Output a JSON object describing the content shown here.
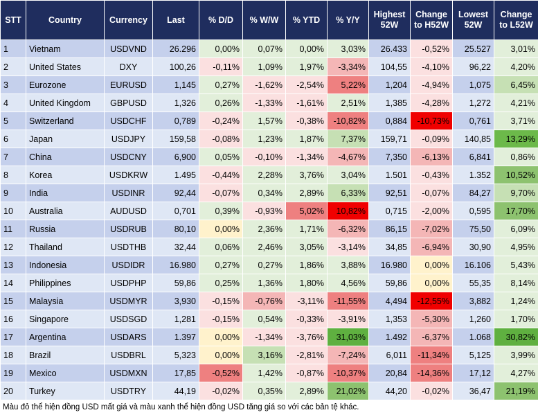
{
  "table": {
    "header": [
      "STT",
      "Country",
      "Currency",
      "Last",
      "% D/D",
      "% W/W",
      "% YTD",
      "% Y/Y",
      "Highest 52W",
      "Change to H52W",
      "Lowest 52W",
      "Change to L52W"
    ],
    "rows": [
      [
        "1",
        "Vietnam",
        "USDVND",
        "26.296",
        "0,00%",
        "0,07%",
        "0,00%",
        "3,03%",
        "26.433",
        "-0,52%",
        "25.527",
        "3,01%"
      ],
      [
        "2",
        "United States",
        "DXY",
        "100,26",
        "-0,11%",
        "1,09%",
        "1,97%",
        "-3,34%",
        "104,55",
        "-4,10%",
        "96,22",
        "4,20%"
      ],
      [
        "3",
        "Eurozone",
        "EURUSD",
        "1,145",
        "0,27%",
        "-1,62%",
        "-2,54%",
        "5,22%",
        "1,204",
        "-4,94%",
        "1,075",
        "6,45%"
      ],
      [
        "4",
        "United Kingdom",
        "GBPUSD",
        "1,326",
        "0,26%",
        "-1,33%",
        "-1,61%",
        "2,51%",
        "1,385",
        "-4,28%",
        "1,272",
        "4,21%"
      ],
      [
        "5",
        "Switzerland",
        "USDCHF",
        "0,789",
        "-0,24%",
        "1,57%",
        "-0,38%",
        "-10,82%",
        "0,884",
        "-10,73%",
        "0,761",
        "3,71%"
      ],
      [
        "6",
        "Japan",
        "USDJPY",
        "159,58",
        "-0,08%",
        "1,23%",
        "1,87%",
        "7,37%",
        "159,71",
        "-0,09%",
        "140,85",
        "13,29%"
      ],
      [
        "7",
        "China",
        "USDCNY",
        "6,900",
        "0,05%",
        "-0,10%",
        "-1,34%",
        "-4,67%",
        "7,350",
        "-6,13%",
        "6,841",
        "0,86%"
      ],
      [
        "8",
        "Korea",
        "USDKRW",
        "1.495",
        "-0,44%",
        "2,28%",
        "3,76%",
        "3,04%",
        "1.501",
        "-0,43%",
        "1.352",
        "10,52%"
      ],
      [
        "9",
        "India",
        "USDINR",
        "92,44",
        "-0,07%",
        "0,34%",
        "2,89%",
        "6,33%",
        "92,51",
        "-0,07%",
        "84,27",
        "9,70%"
      ],
      [
        "10",
        "Australia",
        "AUDUSD",
        "0,701",
        "0,39%",
        "-0,93%",
        "5,02%",
        "10,82%",
        "0,715",
        "-2,00%",
        "0,595",
        "17,70%"
      ],
      [
        "11",
        "Russia",
        "USDRUB",
        "80,10",
        "0,00%",
        "2,36%",
        "1,71%",
        "-6,32%",
        "86,15",
        "-7,02%",
        "75,50",
        "6,09%"
      ],
      [
        "12",
        "Thailand",
        "USDTHB",
        "32,44",
        "0,06%",
        "2,46%",
        "3,05%",
        "-3,14%",
        "34,85",
        "-6,94%",
        "30,90",
        "4,95%"
      ],
      [
        "13",
        "Indonesia",
        "USDIDR",
        "16.980",
        "0,27%",
        "0,27%",
        "1,86%",
        "3,88%",
        "16.980",
        "0,00%",
        "16.106",
        "5,43%"
      ],
      [
        "14",
        "Philippines",
        "USDPHP",
        "59,86",
        "0,25%",
        "1,36%",
        "1,80%",
        "4,56%",
        "59,86",
        "0,00%",
        "55,35",
        "8,14%"
      ],
      [
        "15",
        "Malaysia",
        "USDMYR",
        "3,930",
        "-0,15%",
        "-0,76%",
        "-3,11%",
        "-11,55%",
        "4,494",
        "-12,55%",
        "3,882",
        "1,24%"
      ],
      [
        "16",
        "Singapore",
        "USDSGD",
        "1,281",
        "-0,15%",
        "0,54%",
        "-0,33%",
        "-3,91%",
        "1,353",
        "-5,30%",
        "1,260",
        "1,70%"
      ],
      [
        "17",
        "Argentina",
        "USDARS",
        "1.397",
        "0,00%",
        "-1,34%",
        "-3,76%",
        "31,03%",
        "1.492",
        "-6,37%",
        "1.068",
        "30,82%"
      ],
      [
        "18",
        "Brazil",
        "USDBRL",
        "5,323",
        "0,00%",
        "3,16%",
        "-2,81%",
        "-7,24%",
        "6,011",
        "-11,34%",
        "5,125",
        "3,99%"
      ],
      [
        "19",
        "Mexico",
        "USDMXN",
        "17,85",
        "-0,52%",
        "1,42%",
        "-0,87%",
        "-10,37%",
        "20,84",
        "-14,36%",
        "17,12",
        "4,27%"
      ],
      [
        "20",
        "Turkey",
        "USDTRY",
        "44,19",
        "-0,02%",
        "0,35%",
        "2,89%",
        "21,02%",
        "44,20",
        "-0,02%",
        "36,47",
        "21,19%"
      ]
    ],
    "colored_columns": [
      4,
      5,
      6,
      7,
      9,
      11
    ],
    "cell_colors": [
      [
        "#e2efda",
        "#e2efda",
        "#e2efda",
        "#e2efda",
        "#fbe0e0",
        "#e2efda"
      ],
      [
        "#fbe0e0",
        "#e2efda",
        "#e2efda",
        "#f4b6b6",
        "#fbe0e0",
        "#e2efda"
      ],
      [
        "#e2efda",
        "#fbe0e0",
        "#fbe0e0",
        "#ee8080",
        "#fbe0e0",
        "#c6e0b4"
      ],
      [
        "#e2efda",
        "#fbe0e0",
        "#fbe0e0",
        "#e2efda",
        "#fbe0e0",
        "#e2efda"
      ],
      [
        "#fbe0e0",
        "#e2efda",
        "#fbe0e0",
        "#ee8080",
        "#f00000",
        "#e2efda"
      ],
      [
        "#fbe0e0",
        "#e2efda",
        "#e2efda",
        "#c6e0b4",
        "#fbe0e0",
        "#6cb94a"
      ],
      [
        "#e2efda",
        "#fbe0e0",
        "#fbe0e0",
        "#f4b6b6",
        "#f4b6b6",
        "#e2efda"
      ],
      [
        "#fbe0e0",
        "#e2efda",
        "#e2efda",
        "#e2efda",
        "#fbe0e0",
        "#8dc26f"
      ],
      [
        "#fbe0e0",
        "#e2efda",
        "#e2efda",
        "#c6e0b4",
        "#fbe0e0",
        "#c6e0b4"
      ],
      [
        "#e2efda",
        "#fbe0e0",
        "#ee8080",
        "#f00000",
        "#fbe0e0",
        "#8dc26f"
      ],
      [
        "#fff2cc",
        "#e2efda",
        "#e2efda",
        "#f4b6b6",
        "#f4b6b6",
        "#e2efda"
      ],
      [
        "#e2efda",
        "#e2efda",
        "#e2efda",
        "#fbe0e0",
        "#f4b6b6",
        "#e2efda"
      ],
      [
        "#e2efda",
        "#e2efda",
        "#e2efda",
        "#e2efda",
        "#fff2cc",
        "#e2efda"
      ],
      [
        "#e2efda",
        "#e2efda",
        "#e2efda",
        "#e2efda",
        "#fff2cc",
        "#e2efda"
      ],
      [
        "#fbe0e0",
        "#f4b6b6",
        "#fbe0e0",
        "#ee8080",
        "#f00000",
        "#e2efda"
      ],
      [
        "#fbe0e0",
        "#e2efda",
        "#fbe0e0",
        "#fbe0e0",
        "#f4b6b6",
        "#e2efda"
      ],
      [
        "#fff2cc",
        "#fbe0e0",
        "#fbe0e0",
        "#5fb040",
        "#f4b6b6",
        "#5fb040"
      ],
      [
        "#fff2cc",
        "#c6e0b4",
        "#fbe0e0",
        "#f4b6b6",
        "#ee8080",
        "#e2efda"
      ],
      [
        "#ee8080",
        "#e2efda",
        "#fbe0e0",
        "#ee8080",
        "#ee8080",
        "#e2efda"
      ],
      [
        "#fbe0e0",
        "#e2efda",
        "#e2efda",
        "#8dc26f",
        "#fbe0e0",
        "#8dc26f"
      ]
    ]
  },
  "footer": "Màu đỏ thể hiện đồng USD mất giá và màu xanh thể hiện đồng USD tăng giá so với các bản tệ khác."
}
